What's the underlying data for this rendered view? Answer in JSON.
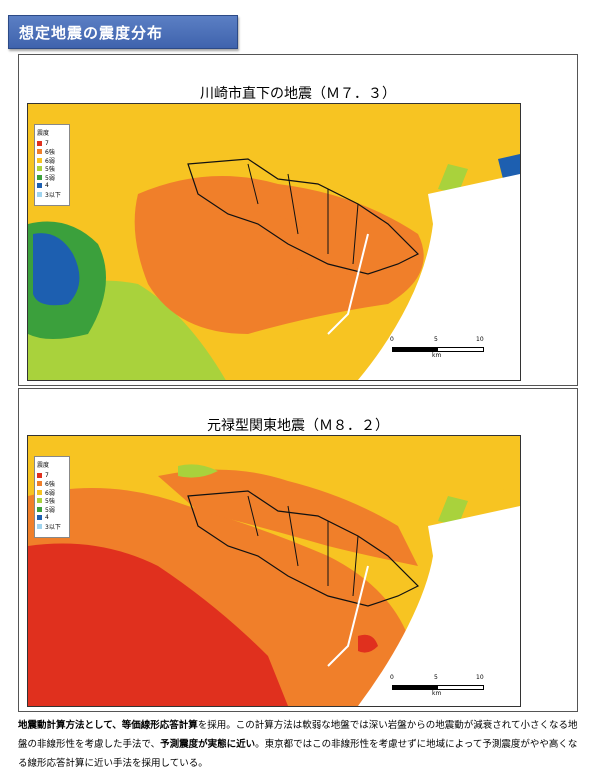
{
  "header": {
    "title": "想定地震の震度分布"
  },
  "legend": {
    "title": "震度",
    "items": [
      {
        "label": "7",
        "color": "#e0301e"
      },
      {
        "label": "6強",
        "color": "#f07f2a"
      },
      {
        "label": "6弱",
        "color": "#f7c422"
      },
      {
        "label": "5強",
        "color": "#a9d23c"
      },
      {
        "label": "5弱",
        "color": "#3ba03c"
      },
      {
        "label": "4",
        "color": "#1d5fb0"
      },
      {
        "label": "3以下",
        "color": "#9fd4ef"
      }
    ]
  },
  "scale": {
    "ticks": [
      "0",
      "5",
      "10"
    ],
    "unit": "km"
  },
  "maps": [
    {
      "title": "川崎市直下の地震（Ｍ７．３）"
    },
    {
      "title": "元禄型関東地震（Ｍ８．２）"
    }
  ],
  "caption": {
    "bold1": "地震動計算方法として、等価線形応答計算",
    "t1": "を採用。この計算方法は軟弱な地盤では深い岩盤からの地震動が減衰されて小さくなる地盤の非線形性を考慮した手法で、",
    "bold2": "予測震度が実態に近い",
    "t2": "。東京都ではこの非線形性を考慮せずに地域によって予測震度がやや高くなる線形応答計算に近い手法を採用している。"
  }
}
